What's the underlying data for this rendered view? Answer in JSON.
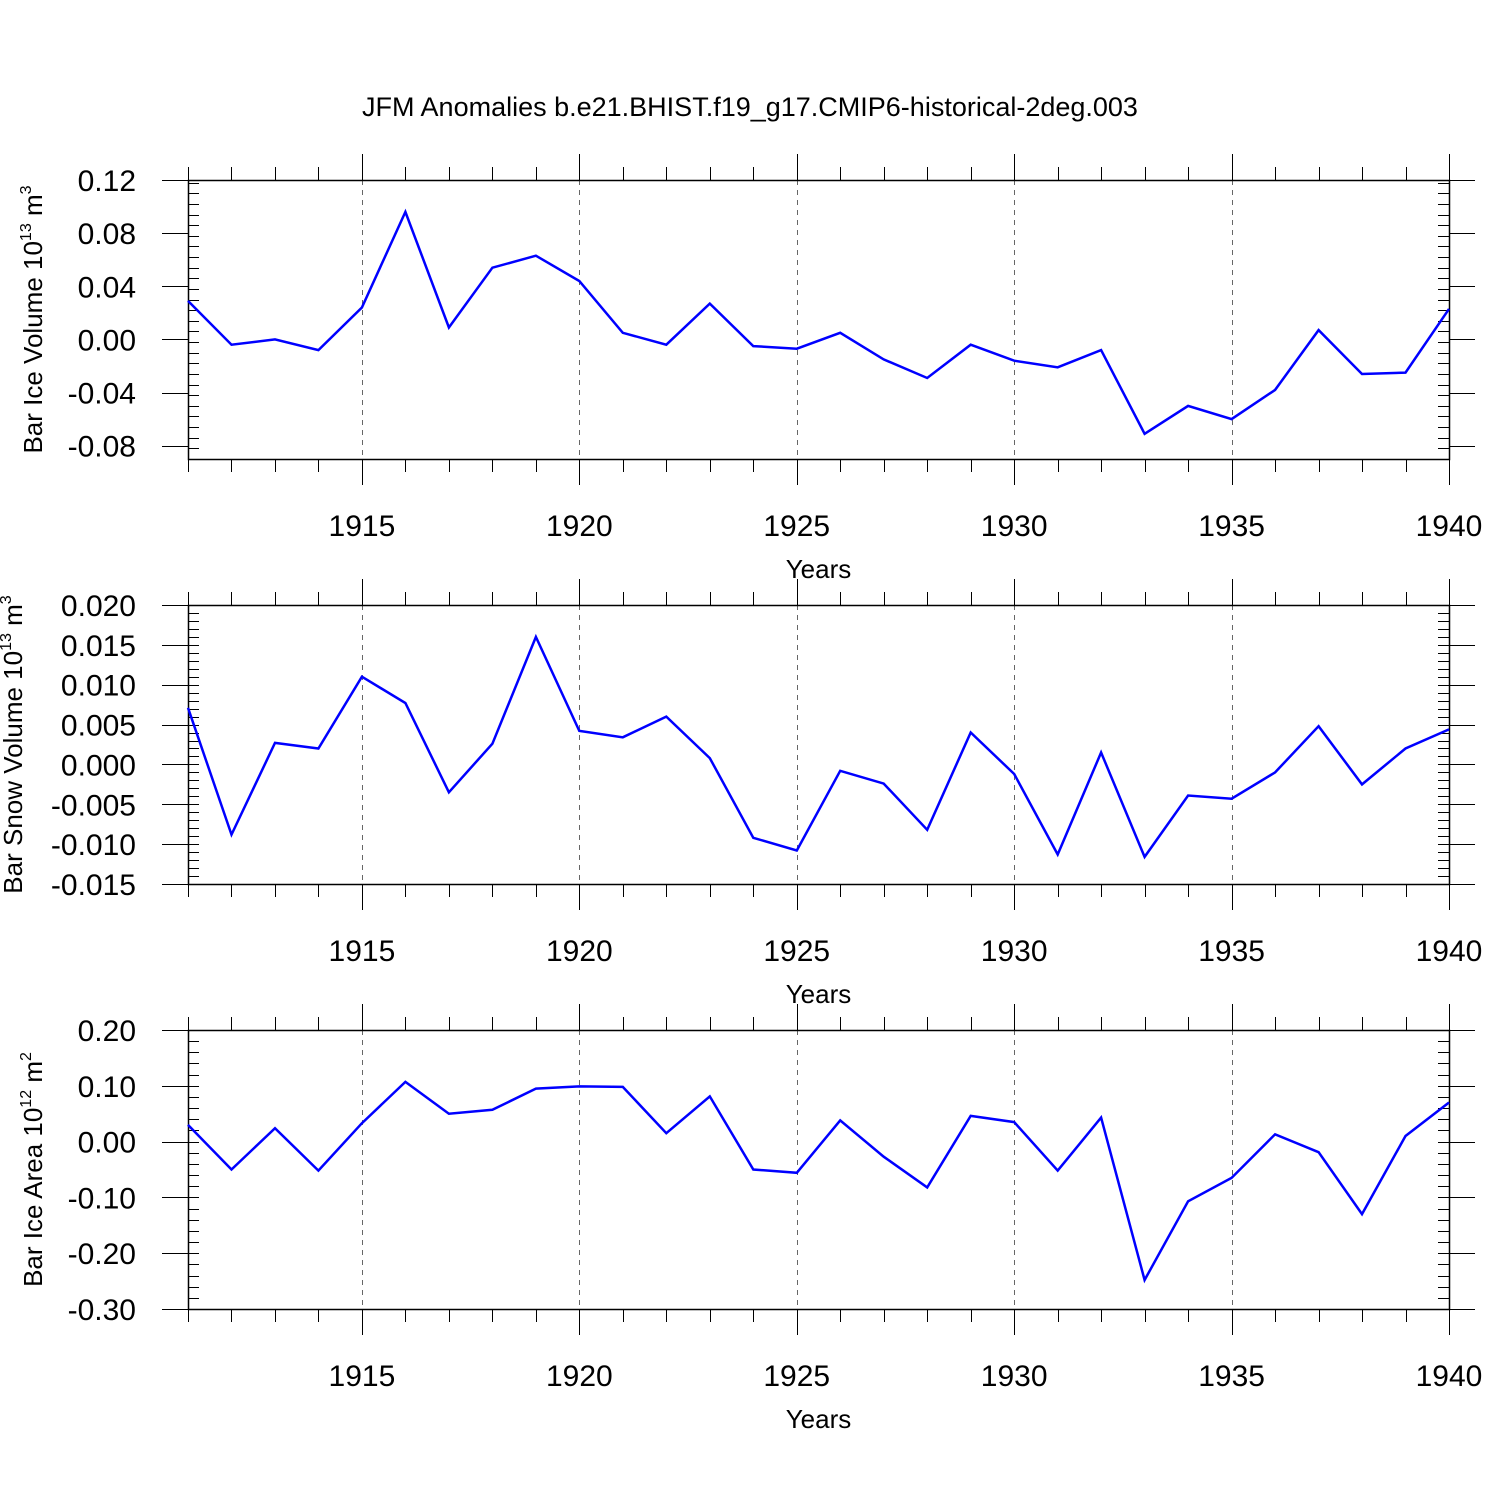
{
  "title": "JFM Anomalies b.e21.BHIST.f19_g17.CMIP6-historical-2deg.003",
  "colors": {
    "series": "#0000ff",
    "axis": "#000000",
    "grid": "#666666"
  },
  "chart_data": [
    {
      "type": "line",
      "ylabel_main": "Bar Ice Volume 10",
      "ylabel_exp": "13",
      "ylabel_unit": " m",
      "ylabel_unit_exp": "3",
      "xlabel": "Years",
      "xlim": [
        1911,
        1940
      ],
      "ylim": [
        -0.09,
        0.12
      ],
      "yticks": [
        0.12,
        0.08,
        0.04,
        0.0,
        -0.04,
        -0.08
      ],
      "ytick_labels": [
        "0.12",
        "0.08",
        "0.04",
        "0.00",
        "-0.04",
        "-0.08"
      ],
      "xticks": [
        1915,
        1920,
        1925,
        1930,
        1935,
        1940
      ],
      "xtick_labels": [
        "1915",
        "1920",
        "1925",
        "1930",
        "1935",
        "1940"
      ],
      "grid": "vertical dashed at major x ticks",
      "x": [
        1911,
        1912,
        1913,
        1914,
        1915,
        1916,
        1917,
        1918,
        1919,
        1920,
        1921,
        1922,
        1923,
        1924,
        1925,
        1926,
        1927,
        1928,
        1929,
        1930,
        1931,
        1932,
        1933,
        1934,
        1935,
        1936,
        1937,
        1938,
        1939,
        1940
      ],
      "values": [
        0.029,
        -0.004,
        0.0,
        -0.008,
        0.024,
        0.096,
        0.009,
        0.054,
        0.063,
        0.044,
        0.005,
        -0.004,
        0.027,
        -0.005,
        -0.007,
        0.005,
        -0.015,
        -0.029,
        -0.004,
        -0.016,
        -0.021,
        -0.008,
        -0.071,
        -0.05,
        -0.06,
        -0.038,
        0.007,
        -0.026,
        -0.025,
        0.023
      ]
    },
    {
      "type": "line",
      "ylabel_main": "Bar Snow Volume 10",
      "ylabel_exp": "13",
      "ylabel_unit": " m",
      "ylabel_unit_exp": "3",
      "xlabel": "Years",
      "xlim": [
        1911,
        1940
      ],
      "ylim": [
        -0.015,
        0.02
      ],
      "yticks": [
        0.02,
        0.015,
        0.01,
        0.005,
        0.0,
        -0.005,
        -0.01,
        -0.015
      ],
      "ytick_labels": [
        "0.020",
        "0.015",
        "0.010",
        "0.005",
        "0.000",
        "-0.005",
        "-0.010",
        "-0.015"
      ],
      "xticks": [
        1915,
        1920,
        1925,
        1930,
        1935,
        1940
      ],
      "xtick_labels": [
        "1915",
        "1920",
        "1925",
        "1930",
        "1935",
        "1940"
      ],
      "grid": "vertical dashed at major x ticks",
      "x": [
        1911,
        1912,
        1913,
        1914,
        1915,
        1916,
        1917,
        1918,
        1919,
        1920,
        1921,
        1922,
        1923,
        1924,
        1925,
        1926,
        1927,
        1928,
        1929,
        1930,
        1931,
        1932,
        1933,
        1934,
        1935,
        1936,
        1937,
        1938,
        1939,
        1940
      ],
      "values": [
        0.0071,
        -0.0088,
        0.0027,
        0.002,
        0.011,
        0.0077,
        -0.0035,
        0.0026,
        0.016,
        0.0042,
        0.0034,
        0.006,
        0.0008,
        -0.0092,
        -0.0108,
        -0.0008,
        -0.0024,
        -0.0082,
        0.004,
        -0.0012,
        -0.0113,
        0.0015,
        -0.0116,
        -0.0039,
        -0.0043,
        -0.001,
        0.0048,
        -0.0025,
        0.002,
        0.0044
      ]
    },
    {
      "type": "line",
      "ylabel_main": "Bar Ice Area 10",
      "ylabel_exp": "12",
      "ylabel_unit": " m",
      "ylabel_unit_exp": "2",
      "xlabel": "Years",
      "xlim": [
        1911,
        1940
      ],
      "ylim": [
        -0.3,
        0.2
      ],
      "yticks": [
        0.2,
        0.1,
        0.0,
        -0.1,
        -0.2,
        -0.3
      ],
      "ytick_labels": [
        "0.20",
        "0.10",
        "0.00",
        "-0.10",
        "-0.20",
        "-0.30"
      ],
      "xticks": [
        1915,
        1920,
        1925,
        1930,
        1935,
        1940
      ],
      "xtick_labels": [
        "1915",
        "1920",
        "1925",
        "1930",
        "1935",
        "1940"
      ],
      "grid": "vertical dashed at major x ticks",
      "x": [
        1911,
        1912,
        1913,
        1914,
        1915,
        1916,
        1917,
        1918,
        1919,
        1920,
        1921,
        1922,
        1923,
        1924,
        1925,
        1926,
        1927,
        1928,
        1929,
        1930,
        1931,
        1932,
        1933,
        1934,
        1935,
        1936,
        1937,
        1938,
        1939,
        1940
      ],
      "values": [
        0.03,
        -0.05,
        0.024,
        -0.052,
        0.033,
        0.107,
        0.05,
        0.057,
        0.095,
        0.099,
        0.098,
        0.015,
        0.081,
        -0.05,
        -0.056,
        0.038,
        -0.027,
        -0.082,
        0.046,
        0.035,
        -0.052,
        0.043,
        -0.248,
        -0.107,
        -0.065,
        0.013,
        -0.019,
        -0.13,
        0.01,
        0.07
      ]
    }
  ]
}
